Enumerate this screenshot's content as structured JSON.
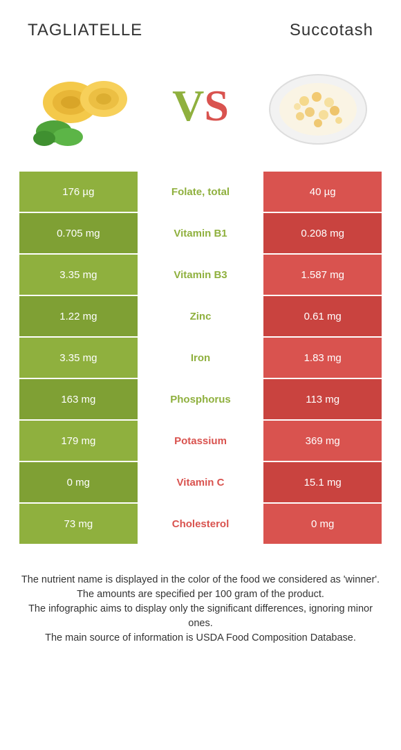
{
  "colors": {
    "left": "#8fb03e",
    "right": "#d9534f",
    "leftDark": "#7fa034",
    "rightDark": "#c9433f",
    "text": "#333333",
    "bg": "#ffffff"
  },
  "foods": {
    "left": {
      "title": "TAGLIATELLE"
    },
    "right": {
      "title": "Succotash"
    }
  },
  "vs": {
    "v": "V",
    "s": "S"
  },
  "rows": [
    {
      "left": "176 µg",
      "label": "Folate, total",
      "right": "40 µg",
      "winner": "left"
    },
    {
      "left": "0.705 mg",
      "label": "Vitamin B1",
      "right": "0.208 mg",
      "winner": "left"
    },
    {
      "left": "3.35 mg",
      "label": "Vitamin B3",
      "right": "1.587 mg",
      "winner": "left"
    },
    {
      "left": "1.22 mg",
      "label": "Zinc",
      "right": "0.61 mg",
      "winner": "left"
    },
    {
      "left": "3.35 mg",
      "label": "Iron",
      "right": "1.83 mg",
      "winner": "left"
    },
    {
      "left": "163 mg",
      "label": "Phosphorus",
      "right": "113 mg",
      "winner": "left"
    },
    {
      "left": "179 mg",
      "label": "Potassium",
      "right": "369 mg",
      "winner": "right"
    },
    {
      "left": "0 mg",
      "label": "Vitamin C",
      "right": "15.1 mg",
      "winner": "right"
    },
    {
      "left": "73 mg",
      "label": "Cholesterol",
      "right": "0 mg",
      "winner": "right"
    }
  ],
  "footer": [
    "The nutrient name is displayed in the color of the food we considered as 'winner'.",
    "The amounts are specified per 100 gram of the product.",
    "The infographic aims to display only the significant differences, ignoring minor ones.",
    "The main source of information is USDA Food Composition Database."
  ]
}
